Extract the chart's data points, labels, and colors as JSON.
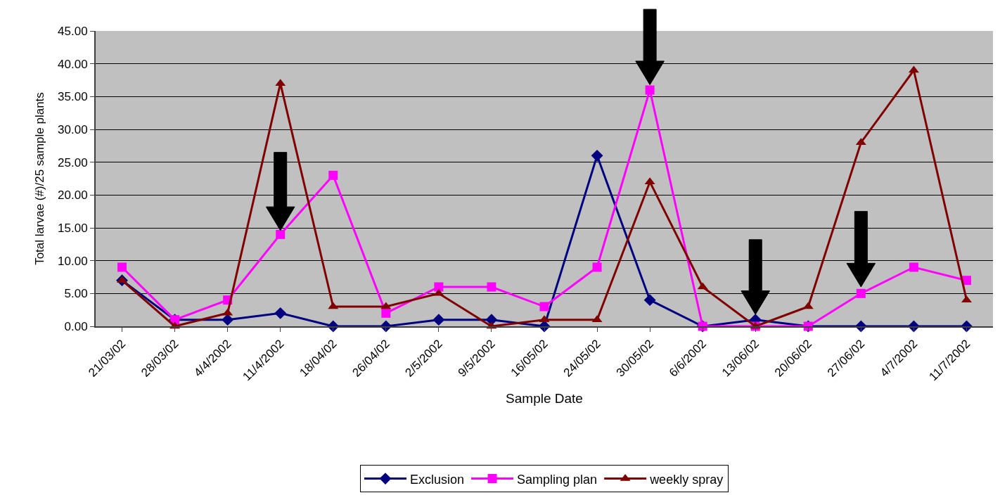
{
  "chart_data": {
    "type": "line",
    "xlabel": "Sample Date",
    "ylabel": "Total larvae (#)/25 sample plants",
    "categories": [
      "21/03/02",
      "28/03/02",
      "4/4/2002",
      "11/4/2002",
      "18/04/02",
      "26/04/02",
      "2/5/2002",
      "9/5/2002",
      "16/05/02",
      "24/05/02",
      "30/05/02",
      "6/6/2002",
      "13/06/02",
      "20/06/02",
      "27/06/02",
      "4/7/2002",
      "11/7/2002"
    ],
    "series": [
      {
        "name": "Exclusion",
        "color": "#000080",
        "marker": "diamond",
        "values": [
          7,
          1,
          1,
          2,
          0,
          0,
          1,
          1,
          0,
          26,
          4,
          0,
          1,
          0,
          0,
          0,
          0
        ]
      },
      {
        "name": "Sampling plan",
        "color": "#ff00ff",
        "marker": "square",
        "values": [
          9,
          1,
          4,
          14,
          23,
          2,
          6,
          6,
          3,
          9,
          36,
          0,
          0,
          0,
          5,
          9,
          7
        ]
      },
      {
        "name": "weekly spray",
        "color": "#800000",
        "marker": "triangle",
        "values": [
          7,
          0,
          2,
          37,
          3,
          3,
          5,
          0,
          1,
          1,
          22,
          6,
          0,
          3,
          28,
          39,
          4
        ]
      }
    ],
    "ylim": [
      0,
      45
    ],
    "yticks": [
      {
        "value": 0,
        "label": "0.00"
      },
      {
        "value": 5,
        "label": "5.00"
      },
      {
        "value": 10,
        "label": "10.00"
      },
      {
        "value": 15,
        "label": "15.00"
      },
      {
        "value": 20,
        "label": "20.00"
      },
      {
        "value": 25,
        "label": "25.00"
      },
      {
        "value": 30,
        "label": "30.00"
      },
      {
        "value": 35,
        "label": "35.00"
      },
      {
        "value": 40,
        "label": "40.00"
      },
      {
        "value": 45,
        "label": "45.00"
      }
    ],
    "grid": "y",
    "legend": "bottom",
    "line_style": "solid"
  }
}
